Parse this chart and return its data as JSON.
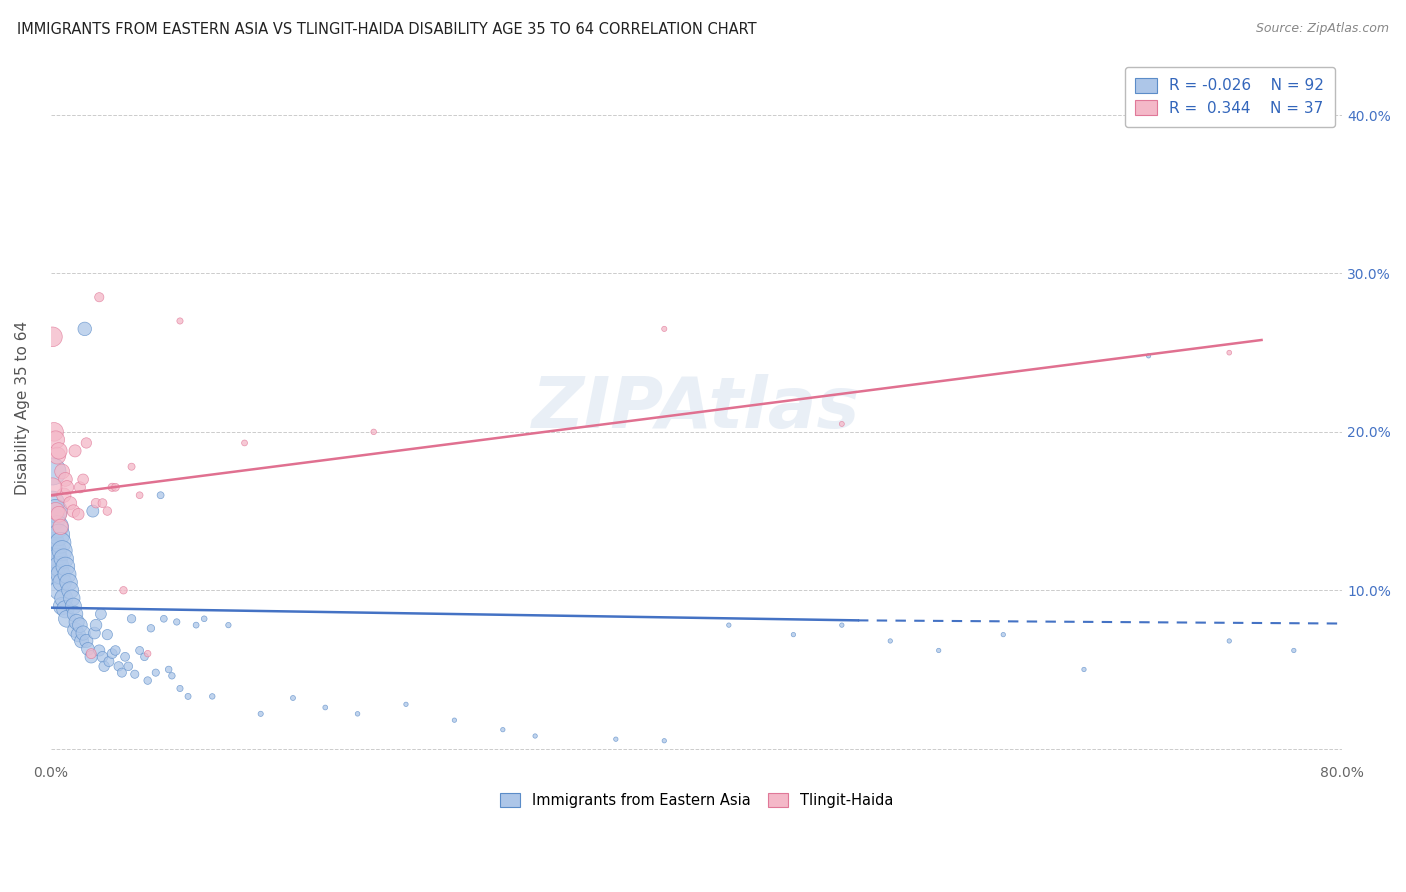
{
  "title": "IMMIGRANTS FROM EASTERN ASIA VS TLINGIT-HAIDA DISABILITY AGE 35 TO 64 CORRELATION CHART",
  "source": "Source: ZipAtlas.com",
  "ylabel": "Disability Age 35 to 64",
  "xlim": [
    0.0,
    0.8
  ],
  "ylim": [
    -0.005,
    0.435
  ],
  "xtick_vals": [
    0.0,
    0.1,
    0.2,
    0.3,
    0.4,
    0.5,
    0.6,
    0.7,
    0.8
  ],
  "xticklabels": [
    "0.0%",
    "",
    "",
    "",
    "",
    "",
    "",
    "",
    "80.0%"
  ],
  "ytick_vals": [
    0.0,
    0.1,
    0.2,
    0.3,
    0.4
  ],
  "yticklabels_right": [
    "",
    "10.0%",
    "20.0%",
    "30.0%",
    "40.0%"
  ],
  "blue_face_color": "#adc6e8",
  "blue_edge_color": "#5b8cc8",
  "pink_face_color": "#f4b8c8",
  "pink_edge_color": "#e07898",
  "blue_line_color": "#4472c4",
  "pink_line_color": "#e07090",
  "grid_color": "#cccccc",
  "R_blue": -0.026,
  "N_blue": 92,
  "R_pink": 0.344,
  "N_pink": 37,
  "legend_label_blue": "Immigrants from Eastern Asia",
  "legend_label_pink": "Tlingit-Haida",
  "watermark": "ZIPAtlas",
  "blue_line_solid": [
    [
      0.0,
      0.5
    ],
    [
      0.089,
      0.081
    ]
  ],
  "blue_line_dashed": [
    [
      0.5,
      0.8
    ],
    [
      0.081,
      0.079
    ]
  ],
  "pink_line": [
    [
      0.0,
      0.75
    ],
    [
      0.16,
      0.258
    ]
  ],
  "blue_scatter": {
    "x": [
      0.001,
      0.001,
      0.002,
      0.002,
      0.002,
      0.003,
      0.003,
      0.003,
      0.004,
      0.004,
      0.005,
      0.005,
      0.005,
      0.006,
      0.006,
      0.007,
      0.007,
      0.007,
      0.008,
      0.008,
      0.009,
      0.009,
      0.01,
      0.01,
      0.011,
      0.012,
      0.013,
      0.014,
      0.015,
      0.015,
      0.016,
      0.017,
      0.018,
      0.019,
      0.02,
      0.021,
      0.022,
      0.023,
      0.025,
      0.026,
      0.027,
      0.028,
      0.03,
      0.031,
      0.032,
      0.033,
      0.035,
      0.036,
      0.038,
      0.04,
      0.042,
      0.044,
      0.046,
      0.048,
      0.05,
      0.052,
      0.055,
      0.058,
      0.06,
      0.062,
      0.065,
      0.068,
      0.07,
      0.073,
      0.075,
      0.078,
      0.08,
      0.085,
      0.09,
      0.095,
      0.1,
      0.11,
      0.13,
      0.15,
      0.17,
      0.19,
      0.22,
      0.25,
      0.28,
      0.3,
      0.35,
      0.38,
      0.42,
      0.46,
      0.49,
      0.52,
      0.55,
      0.59,
      0.64,
      0.68,
      0.73,
      0.77
    ],
    "y": [
      0.175,
      0.155,
      0.145,
      0.13,
      0.115,
      0.15,
      0.125,
      0.11,
      0.14,
      0.12,
      0.135,
      0.115,
      0.1,
      0.13,
      0.11,
      0.125,
      0.105,
      0.09,
      0.12,
      0.095,
      0.115,
      0.088,
      0.11,
      0.082,
      0.105,
      0.1,
      0.095,
      0.09,
      0.085,
      0.075,
      0.08,
      0.072,
      0.078,
      0.068,
      0.073,
      0.265,
      0.068,
      0.063,
      0.058,
      0.15,
      0.073,
      0.078,
      0.062,
      0.085,
      0.058,
      0.052,
      0.072,
      0.055,
      0.06,
      0.062,
      0.052,
      0.048,
      0.058,
      0.052,
      0.082,
      0.047,
      0.062,
      0.058,
      0.043,
      0.076,
      0.048,
      0.16,
      0.082,
      0.05,
      0.046,
      0.08,
      0.038,
      0.033,
      0.078,
      0.082,
      0.033,
      0.078,
      0.022,
      0.032,
      0.026,
      0.022,
      0.028,
      0.018,
      0.012,
      0.008,
      0.006,
      0.005,
      0.078,
      0.072,
      0.078,
      0.068,
      0.062,
      0.072,
      0.05,
      0.248,
      0.068,
      0.062
    ],
    "size": [
      380,
      300,
      250,
      220,
      200,
      280,
      240,
      200,
      260,
      220,
      240,
      210,
      185,
      225,
      195,
      210,
      180,
      160,
      195,
      170,
      182,
      155,
      170,
      148,
      160,
      150,
      140,
      132,
      125,
      115,
      120,
      108,
      112,
      100,
      106,
      95,
      90,
      85,
      80,
      75,
      72,
      70,
      65,
      62,
      60,
      57,
      55,
      52,
      50,
      48,
      45,
      43,
      41,
      39,
      37,
      35,
      33,
      31,
      30,
      29,
      27,
      25,
      24,
      23,
      22,
      21,
      20,
      19,
      18,
      17,
      16,
      15,
      14,
      13,
      12,
      11,
      10,
      10,
      10,
      10,
      10,
      10,
      10,
      10,
      10,
      10,
      10,
      10,
      10,
      10,
      10,
      10
    ]
  },
  "pink_scatter": {
    "x": [
      0.001,
      0.002,
      0.003,
      0.003,
      0.004,
      0.005,
      0.005,
      0.006,
      0.007,
      0.008,
      0.009,
      0.01,
      0.012,
      0.014,
      0.015,
      0.017,
      0.018,
      0.02,
      0.022,
      0.025,
      0.028,
      0.03,
      0.032,
      0.035,
      0.038,
      0.04,
      0.045,
      0.05,
      0.055,
      0.06,
      0.08,
      0.12,
      0.2,
      0.38,
      0.49,
      0.73,
      0.001
    ],
    "y": [
      0.26,
      0.2,
      0.195,
      0.15,
      0.185,
      0.188,
      0.148,
      0.14,
      0.175,
      0.16,
      0.17,
      0.165,
      0.155,
      0.15,
      0.188,
      0.148,
      0.165,
      0.17,
      0.193,
      0.06,
      0.155,
      0.285,
      0.155,
      0.15,
      0.165,
      0.165,
      0.1,
      0.178,
      0.16,
      0.06,
      0.27,
      0.193,
      0.2,
      0.265,
      0.205,
      0.25,
      0.165
    ],
    "size": [
      200,
      180,
      165,
      155,
      148,
      140,
      130,
      122,
      115,
      108,
      100,
      94,
      88,
      82,
      76,
      70,
      65,
      60,
      56,
      52,
      48,
      44,
      41,
      38,
      35,
      32,
      29,
      26,
      24,
      22,
      20,
      18,
      16,
      14,
      13,
      12,
      185
    ]
  }
}
